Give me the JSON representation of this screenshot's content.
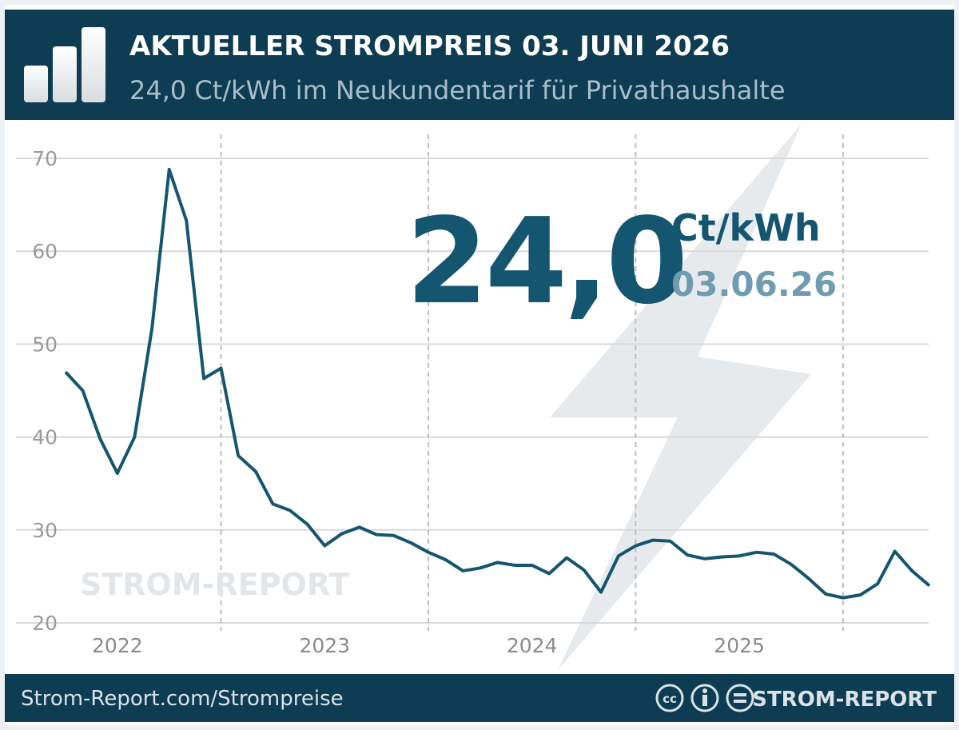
{
  "header": {
    "title": "AKTUELLER STROMPREIS 03. JUNI 2026",
    "subtitle": "24,0 Ct/kWh im Neukundentarif für Privathaushalte"
  },
  "highlight": {
    "price": "24,0",
    "unit": "Ct/kWh",
    "date": "03.06.26"
  },
  "watermark": "STROM-REPORT",
  "footer": {
    "link": "Strom-Report.com/Strompreise",
    "brand": "STROM-REPORT"
  },
  "chart_data": {
    "type": "line",
    "x": [
      2022.25,
      2022.333,
      2022.417,
      2022.5,
      2022.583,
      2022.667,
      2022.75,
      2022.833,
      2022.917,
      2023,
      2023.083,
      2023.167,
      2023.25,
      2023.333,
      2023.417,
      2023.5,
      2023.583,
      2023.667,
      2023.75,
      2023.833,
      2023.917,
      2024,
      2024.083,
      2024.167,
      2024.25,
      2024.333,
      2024.417,
      2024.5,
      2024.583,
      2024.667,
      2024.75,
      2024.833,
      2024.917,
      2025,
      2025.083,
      2025.167,
      2025.25,
      2025.333,
      2025.417,
      2025.5,
      2025.583,
      2025.667,
      2025.75,
      2025.833,
      2025.917,
      2026,
      2026.083,
      2026.167,
      2026.25,
      2026.333,
      2026.417
    ],
    "series": [
      {
        "name": "Strompreis",
        "color": "#145570",
        "values": [
          47.0,
          45.0,
          39.8,
          36.1,
          40.0,
          51.7,
          68.8,
          63.3,
          46.3,
          47.4,
          38.0,
          36.3,
          32.8,
          32.1,
          30.6,
          28.3,
          29.6,
          30.3,
          29.5,
          29.4,
          28.6,
          27.6,
          26.8,
          25.6,
          25.9,
          26.5,
          26.2,
          26.2,
          25.3,
          27.0,
          25.7,
          23.3,
          27.2,
          28.3,
          28.9,
          28.8,
          27.3,
          26.9,
          27.1,
          27.2,
          27.6,
          27.4,
          26.3,
          24.8,
          23.1,
          22.7,
          23.0,
          24.2,
          27.7,
          25.6,
          24.0
        ]
      }
    ],
    "xlim": [
      2022.25,
      2026.417
    ],
    "xticks": [
      {
        "value": 2022.5,
        "label": "2022"
      },
      {
        "value": 2023.5,
        "label": "2023"
      },
      {
        "value": 2024.5,
        "label": "2024"
      },
      {
        "value": 2025.5,
        "label": "2025"
      }
    ],
    "xgrid": [
      2023,
      2024,
      2025,
      2026
    ],
    "ylim": [
      20,
      70
    ],
    "yticks": [
      20,
      30,
      40,
      50,
      60,
      70
    ],
    "grid": true
  }
}
